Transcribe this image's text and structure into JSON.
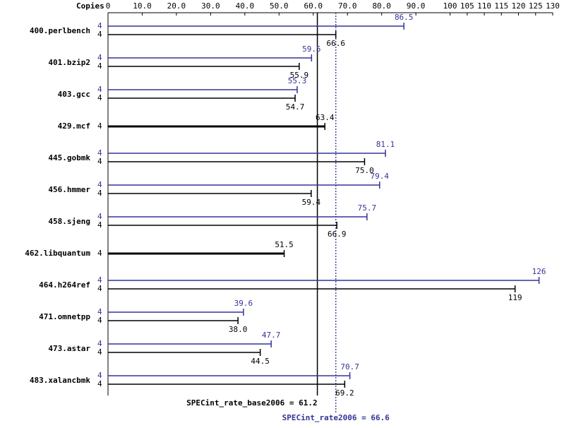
{
  "chart_data": {
    "type": "spec-bar",
    "copies_label": "Copies",
    "categories": [
      "400.perlbench",
      "401.bzip2",
      "403.gcc",
      "429.mcf",
      "445.gobmk",
      "456.hmmer",
      "458.sjeng",
      "462.libquantum",
      "464.h264ref",
      "471.omnetpp",
      "473.astar",
      "483.xalancbmk"
    ],
    "series": [
      {
        "color": "#000000",
        "values": [
          66.6,
          55.9,
          54.7,
          63.4,
          75.0,
          59.4,
          66.9,
          51.5,
          119,
          38.0,
          44.5,
          69.2
        ],
        "value_labels": [
          "66.6",
          "55.9",
          "54.7",
          "63.4",
          "75.0",
          "59.4",
          "66.9",
          "51.5",
          "119",
          "38.0",
          "44.5",
          "69.2"
        ],
        "copies": [
          4,
          4,
          4,
          4,
          4,
          4,
          4,
          4,
          4,
          4,
          4,
          4
        ]
      },
      {
        "color": "#333399",
        "values": [
          86.5,
          59.5,
          55.3,
          null,
          81.1,
          79.4,
          75.7,
          null,
          126,
          39.6,
          47.7,
          70.7
        ],
        "value_labels": [
          "86.5",
          "59.5",
          "55.3",
          null,
          "81.1",
          "79.4",
          "75.7",
          null,
          "126",
          "39.6",
          "47.7",
          "70.7"
        ],
        "copies": [
          4,
          4,
          4,
          null,
          4,
          4,
          4,
          null,
          4,
          4,
          4,
          4
        ]
      }
    ],
    "xlim": [
      0,
      130
    ],
    "xticks": [
      0,
      {
        "value": 10,
        "label": "10.0"
      },
      {
        "value": 20,
        "label": "20.0"
      },
      {
        "value": 30,
        "label": "30.0"
      },
      {
        "value": 40,
        "label": "40.0"
      },
      {
        "value": 50,
        "label": "50.0"
      },
      {
        "value": 60,
        "label": "60.0"
      },
      {
        "value": 70,
        "label": "70.0"
      },
      {
        "value": 80,
        "label": "80.0"
      },
      {
        "value": 90,
        "label": "90.0"
      },
      100,
      105,
      110,
      115,
      120,
      125,
      130
    ],
    "reference_lines": [
      {
        "value": 61.2,
        "label": "SPECint_rate_base2006 = 61.2",
        "color": "#000000",
        "dashed": false
      },
      {
        "value": 66.6,
        "label": "SPECint_rate2006 = 66.6",
        "color": "#333399",
        "dashed": true
      }
    ]
  }
}
